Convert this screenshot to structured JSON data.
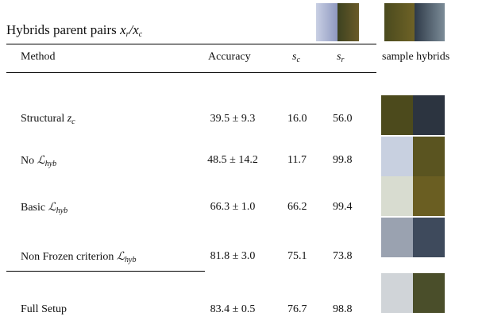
{
  "title": {
    "text": "Hybrids parent pairs",
    "math": [
      {
        "s": "x",
        "sub": "r"
      },
      {
        "s": "/"
      },
      {
        "s": "x",
        "sub": "c"
      }
    ]
  },
  "table": {
    "header": {
      "method": "Method",
      "accuracy": "Accuracy",
      "sc": {
        "s": "s",
        "sub": "c"
      },
      "sr": {
        "s": "s",
        "sub": "r"
      },
      "samples": "sample hybrids"
    },
    "rows": [
      {
        "method": "Structural",
        "math": {
          "s": "z",
          "sub": "c"
        },
        "accuracy": "39.5 ± 9.3",
        "sc": "16.0",
        "sr": "56.0"
      },
      {
        "method": "No",
        "math": {
          "s": "ℒ",
          "sub": "hyb"
        },
        "accuracy": "48.5 ± 14.2",
        "sc": "11.7",
        "sr": "99.8"
      },
      {
        "method": "Basic",
        "math": {
          "s": "ℒ",
          "sub": "hyb"
        },
        "accuracy": "66.3 ± 1.0",
        "sc": "66.2",
        "sr": "99.4"
      },
      {
        "method": "Non Frozen criterion",
        "math": {
          "s": "ℒ",
          "sub": "hyb"
        },
        "accuracy": "81.8 ± 3.0",
        "sc": "75.1",
        "sr": "73.8"
      },
      {
        "method": "Full Setup",
        "accuracy": "83.4 ± 0.5",
        "sc": "76.7",
        "sr": "98.8"
      }
    ]
  }
}
